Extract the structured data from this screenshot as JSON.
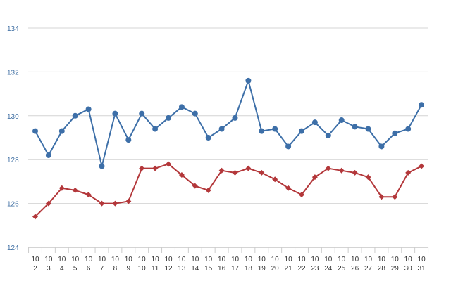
{
  "chart_data": {
    "type": "line",
    "title": "",
    "xlabel": "",
    "ylabel": "",
    "ylim": [
      124,
      134
    ],
    "yticks": [
      124,
      126,
      128,
      130,
      132,
      134
    ],
    "grid": "horizontal",
    "categories": [
      "10/2",
      "10/3",
      "10/4",
      "10/5",
      "10/6",
      "10/7",
      "10/8",
      "10/9",
      "10/10",
      "10/11",
      "10/12",
      "10/13",
      "10/14",
      "10/15",
      "10/16",
      "10/17",
      "10/18",
      "10/19",
      "10/20",
      "10/21",
      "10/22",
      "10/23",
      "10/24",
      "10/25",
      "10/26",
      "10/27",
      "10/28",
      "10/29",
      "10/30",
      "10/31"
    ],
    "category_lines": [
      [
        "10",
        "2"
      ],
      [
        "10",
        "3"
      ],
      [
        "10",
        "4"
      ],
      [
        "10",
        "5"
      ],
      [
        "10",
        "6"
      ],
      [
        "10",
        "7"
      ],
      [
        "10",
        "8"
      ],
      [
        "10",
        "9"
      ],
      [
        "10",
        "10"
      ],
      [
        "10",
        "11"
      ],
      [
        "10",
        "12"
      ],
      [
        "10",
        "13"
      ],
      [
        "10",
        "14"
      ],
      [
        "10",
        "15"
      ],
      [
        "10",
        "16"
      ],
      [
        "10",
        "17"
      ],
      [
        "10",
        "18"
      ],
      [
        "10",
        "19"
      ],
      [
        "10",
        "20"
      ],
      [
        "10",
        "21"
      ],
      [
        "10",
        "22"
      ],
      [
        "10",
        "23"
      ],
      [
        "10",
        "24"
      ],
      [
        "10",
        "25"
      ],
      [
        "10",
        "26"
      ],
      [
        "10",
        "27"
      ],
      [
        "10",
        "28"
      ],
      [
        "10",
        "29"
      ],
      [
        "10",
        "30"
      ],
      [
        "10",
        "31"
      ]
    ],
    "series": [
      {
        "color": "#3d6fa8",
        "marker": "circle",
        "values": [
          129.3,
          128.2,
          129.3,
          130.0,
          130.3,
          127.7,
          130.1,
          128.9,
          130.1,
          129.4,
          129.9,
          130.4,
          130.1,
          129.0,
          129.4,
          129.9,
          131.6,
          129.3,
          129.4,
          128.6,
          129.3,
          129.7,
          129.1,
          129.8,
          129.5,
          129.4,
          128.6,
          129.2,
          129.4,
          130.5
        ]
      },
      {
        "color": "#b3373a",
        "marker": "diamond",
        "values": [
          125.4,
          126.0,
          126.7,
          126.6,
          126.4,
          126.0,
          126.0,
          126.1,
          127.6,
          127.6,
          127.8,
          127.3,
          126.8,
          126.6,
          127.5,
          127.4,
          127.6,
          127.4,
          127.1,
          126.7,
          126.4,
          127.2,
          127.6,
          127.5,
          127.4,
          127.2,
          126.3,
          126.3,
          127.4,
          127.7
        ]
      }
    ]
  }
}
